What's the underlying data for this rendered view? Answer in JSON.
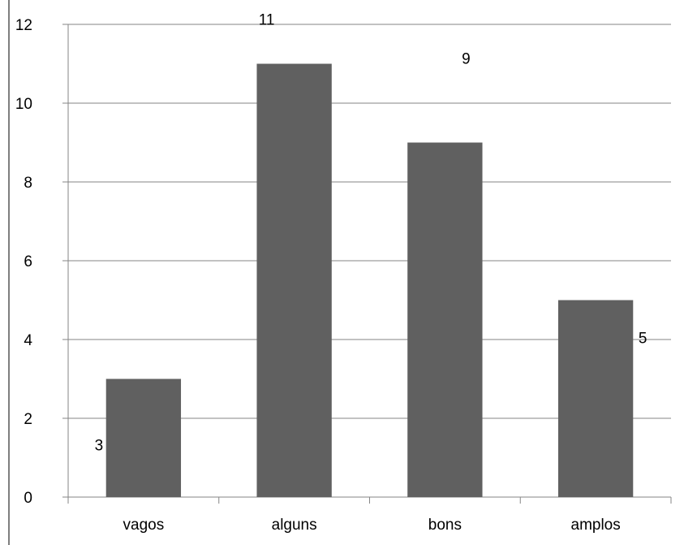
{
  "chart_data": {
    "type": "bar",
    "categories": [
      "vagos",
      "alguns",
      "bons",
      "amplos"
    ],
    "values": [
      3,
      11,
      9,
      5
    ],
    "data_labels": [
      "3",
      "11",
      "9",
      "5"
    ],
    "ylim": [
      0,
      12
    ],
    "yticks": [
      0,
      2,
      4,
      6,
      8,
      10,
      12
    ],
    "grid": true,
    "legend": "none",
    "colors": {
      "bar": "#606060",
      "grid": "#868686",
      "axis": "#868686",
      "frame": "#7f7f7f"
    }
  }
}
